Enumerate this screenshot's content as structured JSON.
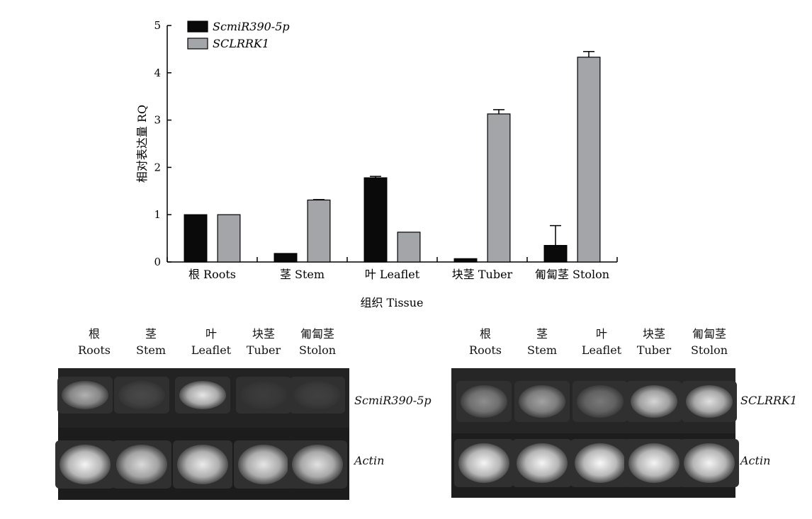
{
  "chart_data": {
    "type": "bar",
    "categories": [
      "根 Roots",
      "茎 Stem",
      "叶 Leaflet",
      "块茎 Tuber",
      "匍匐茎 Stolon"
    ],
    "series": [
      {
        "name": "ScmiR390-5p",
        "color": "#0a0a0a",
        "values": [
          1.0,
          0.18,
          1.78,
          0.07,
          0.35
        ],
        "errors": [
          0.0,
          0.0,
          0.03,
          0.0,
          0.42
        ]
      },
      {
        "name": "SCLRRK1",
        "color": "#a3a5a8",
        "values": [
          1.0,
          1.31,
          0.63,
          3.13,
          4.33
        ],
        "errors": [
          0.0,
          0.01,
          0.0,
          0.09,
          0.12
        ]
      }
    ],
    "xlabel": "组织 Tissue",
    "ylabel": "相对表达量 RQ",
    "ylim": [
      0,
      5
    ],
    "yticks": [
      "0",
      "1",
      "2",
      "3",
      "4",
      "5"
    ],
    "legend": "top-left"
  },
  "gels": [
    {
      "lanes": [
        {
          "zh": "根",
          "en": "Roots"
        },
        {
          "zh": "茎",
          "en": "Stem"
        },
        {
          "zh": "叶",
          "en": "Leaflet"
        },
        {
          "zh": "块茎",
          "en": "Tuber"
        },
        {
          "zh": "匍匐茎",
          "en": "Stolon"
        }
      ],
      "target": "ScmiR390-5p",
      "target_band_intensity": [
        0.62,
        0.12,
        0.88,
        0.06,
        0.08
      ],
      "reference": "Actin",
      "reference_band_intensity": [
        0.95,
        0.82,
        0.9,
        0.88,
        0.86
      ]
    },
    {
      "lanes": [
        {
          "zh": "根",
          "en": "Roots"
        },
        {
          "zh": "茎",
          "en": "Stem"
        },
        {
          "zh": "叶",
          "en": "Leaflet"
        },
        {
          "zh": "块茎",
          "en": "Tuber"
        },
        {
          "zh": "匍匐茎",
          "en": "Stolon"
        }
      ],
      "target": "SCLRRK1",
      "target_band_intensity": [
        0.45,
        0.55,
        0.35,
        0.8,
        0.85
      ],
      "reference": "Actin",
      "reference_band_intensity": [
        0.95,
        0.95,
        0.97,
        0.95,
        0.95
      ]
    }
  ]
}
